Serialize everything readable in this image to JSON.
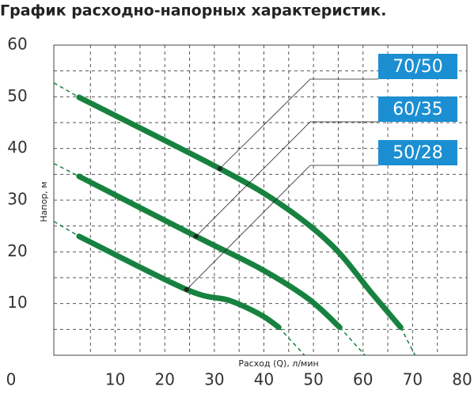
{
  "chart_data": {
    "type": "line",
    "title": "График расходно-напорных характеристик.",
    "x_label": "Расход (Q), л/мин",
    "y_label": "Напор, м",
    "xlim": [
      0,
      80
    ],
    "ylim": [
      0,
      60
    ],
    "xticks": [
      10,
      20,
      30,
      40,
      50,
      60,
      70,
      80
    ],
    "yticks": [
      0,
      10,
      20,
      30,
      40,
      50,
      60
    ],
    "xgrid": [
      5,
      10,
      15,
      20,
      25,
      30,
      35,
      40,
      45,
      50,
      55,
      60,
      65,
      70,
      75
    ],
    "ygrid": [
      5,
      10,
      15,
      20,
      25,
      30,
      35,
      40,
      45,
      50,
      55
    ],
    "grid": true,
    "label_color": "#1b8fd2",
    "series": [
      {
        "name": "70/50",
        "color": "#17823f",
        "x": [
          2.7,
          31.1,
          43.4,
          53.7,
          61.7,
          67.6
        ],
        "values": [
          49.9,
          36.1,
          29.2,
          21.3,
          12.1,
          5.4
        ],
        "dashed_x": [
          -2.4,
          2.7,
          null,
          67.6,
          70.5
        ],
        "dashed_values": [
          52.7,
          49.9,
          null,
          5.4,
          0
        ]
      },
      {
        "name": "60/35",
        "color": "#17823f",
        "x": [
          2.7,
          26.3,
          39.4,
          49,
          55.3
        ],
        "values": [
          34.6,
          23.0,
          16.7,
          10.9,
          5.4
        ],
        "dashed_x": [
          -2.4,
          2.7,
          null,
          55.3,
          60.4
        ],
        "dashed_values": [
          37.1,
          34.6,
          null,
          5.4,
          0
        ]
      },
      {
        "name": "50/28",
        "color": "#17823f",
        "x": [
          2.7,
          24.4,
          33,
          39.4,
          43
        ],
        "values": [
          23.0,
          12.7,
          10.6,
          7.8,
          5.4
        ],
        "dashed_x": [
          -2.4,
          2.7,
          null,
          43,
          48.2
        ],
        "dashed_values": [
          25.9,
          23.0,
          null,
          5.4,
          0
        ]
      }
    ]
  }
}
